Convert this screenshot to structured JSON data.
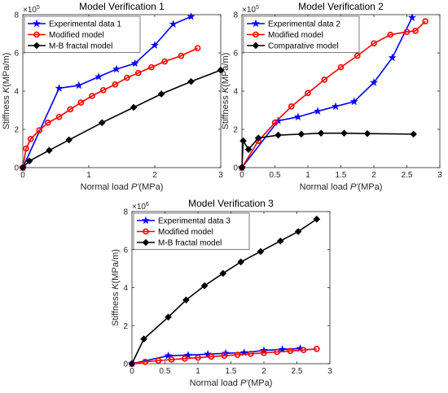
{
  "chart_data": [
    {
      "type": "line",
      "title": "Model Verification 1",
      "xlabel_prefix": "Normal load ",
      "xlabel_var": "P'",
      "xlabel_suffix": "(MPa)",
      "ylabel_prefix": "Stiffness ",
      "ylabel_var": "K",
      "ylabel_suffix": "(MPa/m)",
      "xlim": [
        0,
        3
      ],
      "ylim": [
        0,
        8
      ],
      "xticks": [
        0,
        1,
        2,
        3
      ],
      "yticks": [
        0,
        2,
        4,
        6,
        8
      ],
      "y_exponent_base": "×10",
      "y_exponent": "5",
      "grid": false,
      "legend": "top-left",
      "series": [
        {
          "name": "Experimental data 1",
          "color": "#0000ff",
          "marker": "star",
          "x": [
            0,
            0.55,
            0.85,
            1.15,
            1.42,
            1.7,
            2.0,
            2.28,
            2.55
          ],
          "y": [
            0,
            4.15,
            4.3,
            4.75,
            5.15,
            5.45,
            6.4,
            7.5,
            7.9
          ]
        },
        {
          "name": "Modified model",
          "color": "#ff0000",
          "marker": "circle",
          "x": [
            0,
            0.05,
            0.12,
            0.25,
            0.38,
            0.55,
            0.72,
            0.88,
            1.05,
            1.22,
            1.4,
            1.58,
            1.75,
            1.95,
            2.15,
            2.4,
            2.65
          ],
          "y": [
            0,
            1.0,
            1.5,
            1.95,
            2.35,
            2.65,
            3.05,
            3.4,
            3.75,
            4.05,
            4.35,
            4.7,
            4.95,
            5.25,
            5.55,
            5.85,
            6.25
          ]
        },
        {
          "name": "M-B fractal model",
          "color": "#000000",
          "marker": "diamond",
          "x": [
            0,
            0.1,
            0.4,
            0.7,
            1.2,
            1.68,
            2.1,
            2.55,
            3.0
          ],
          "y": [
            0,
            0.35,
            0.9,
            1.45,
            2.35,
            3.15,
            3.85,
            4.5,
            5.1
          ]
        }
      ]
    },
    {
      "type": "line",
      "title": "Model Verification 2",
      "xlabel_prefix": "Normal load ",
      "xlabel_var": "P'",
      "xlabel_suffix": "(MPa)",
      "ylabel_prefix": "Stiffness ",
      "ylabel_var": "K",
      "ylabel_suffix": "(MPa/m)",
      "xlim": [
        0,
        3
      ],
      "ylim": [
        0,
        8
      ],
      "xticks": [
        0,
        0.5,
        1,
        1.5,
        2,
        2.5,
        3
      ],
      "yticks": [
        0,
        2,
        4,
        6,
        8
      ],
      "y_exponent_base": "×10",
      "y_exponent": "5",
      "grid": false,
      "legend": "top-left",
      "series": [
        {
          "name": "Experimental data 2",
          "color": "#0000ff",
          "marker": "star",
          "x": [
            0,
            0.55,
            0.85,
            1.15,
            1.42,
            1.7,
            2.0,
            2.28,
            2.58
          ],
          "y": [
            0,
            2.45,
            2.65,
            2.95,
            3.2,
            3.45,
            4.45,
            5.75,
            7.85
          ]
        },
        {
          "name": "Modified model",
          "color": "#ff0000",
          "marker": "circle",
          "x": [
            0,
            0.25,
            0.5,
            0.75,
            1.0,
            1.25,
            1.5,
            1.75,
            2.0,
            2.25,
            2.5,
            2.63,
            2.78
          ],
          "y": [
            0,
            1.4,
            2.35,
            3.2,
            3.9,
            4.6,
            5.25,
            5.85,
            6.5,
            6.95,
            7.1,
            7.15,
            7.65
          ]
        },
        {
          "name": "Comparative model",
          "color": "#000000",
          "marker": "diamond",
          "x": [
            0,
            0.02,
            0.1,
            0.25,
            0.55,
            0.9,
            1.2,
            1.55,
            1.9,
            2.6
          ],
          "y": [
            0,
            1.4,
            0.95,
            1.55,
            1.7,
            1.75,
            1.8,
            1.8,
            1.78,
            1.75
          ]
        }
      ]
    },
    {
      "type": "line",
      "title": "Model Verification 3",
      "xlabel_prefix": "Normal load ",
      "xlabel_var": "P'",
      "xlabel_suffix": "(MPa)",
      "ylabel_prefix": "Stiffness ",
      "ylabel_var": "K",
      "ylabel_suffix": "(MPa/m)",
      "xlim": [
        0,
        3
      ],
      "ylim": [
        0,
        8
      ],
      "xticks": [
        0,
        0.5,
        1,
        1.5,
        2,
        2.5,
        3
      ],
      "yticks": [
        0,
        2,
        4,
        6,
        8
      ],
      "y_exponent_base": "×10",
      "y_exponent": "6",
      "grid": false,
      "legend": "top-left",
      "series": [
        {
          "name": "Experimental data 3",
          "color": "#0000ff",
          "marker": "star",
          "x": [
            0,
            0.55,
            0.85,
            1.15,
            1.42,
            1.7,
            2.0,
            2.28,
            2.55
          ],
          "y": [
            0,
            0.42,
            0.45,
            0.5,
            0.55,
            0.58,
            0.7,
            0.75,
            0.8
          ]
        },
        {
          "name": "Modified model",
          "color": "#ff0000",
          "marker": "circle",
          "x": [
            0,
            0.2,
            0.4,
            0.6,
            0.8,
            1.0,
            1.2,
            1.4,
            1.6,
            1.8,
            2.0,
            2.2,
            2.4,
            2.6,
            2.8
          ],
          "y": [
            0,
            0.1,
            0.16,
            0.22,
            0.27,
            0.32,
            0.37,
            0.42,
            0.47,
            0.52,
            0.57,
            0.62,
            0.67,
            0.72,
            0.78
          ]
        },
        {
          "name": "M-B fractal model",
          "color": "#000000",
          "marker": "diamond",
          "x": [
            0,
            0.18,
            0.55,
            0.82,
            1.1,
            1.38,
            1.65,
            1.95,
            2.25,
            2.52,
            2.8
          ],
          "y": [
            0,
            1.3,
            2.45,
            3.35,
            4.1,
            4.75,
            5.35,
            5.9,
            6.45,
            6.95,
            7.6
          ]
        }
      ]
    }
  ]
}
